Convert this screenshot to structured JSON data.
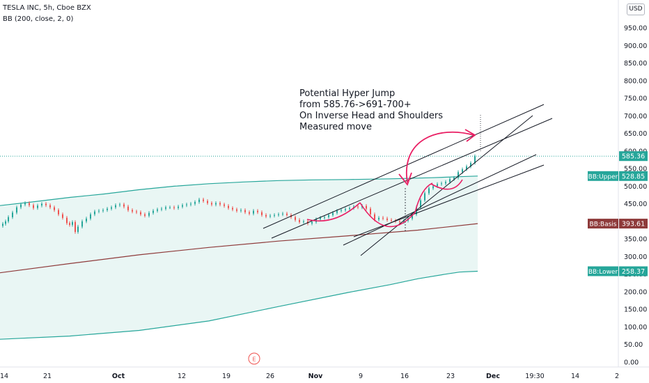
{
  "legend": {
    "symbol": "TESLA INC, 5h, Cboe BZX",
    "indicator": "BB (200, close, 2, 0)"
  },
  "currency": "USD",
  "colors": {
    "band_line": "#26a69a",
    "band_fill": "#e9f6f4",
    "basis": "#8e3a3a",
    "up": "#26a69a",
    "down": "#ef5350",
    "annotation": "#e91e63",
    "trend": "#131722",
    "price_line": "#26a69a"
  },
  "chart_data": {
    "type": "candlestick",
    "y_ticks": [
      "0.00",
      "50.00",
      "100.00",
      "150.00",
      "200.00",
      "250.00",
      "300.00",
      "350.00",
      "400.00",
      "450.00",
      "500.00",
      "550.00",
      "600.00",
      "650.00",
      "700.00",
      "750.00",
      "800.00",
      "850.00",
      "900.00",
      "950.00"
    ],
    "x_ticks": [
      "14",
      "21",
      "Oct",
      "12",
      "19",
      "26",
      "Nov",
      "9",
      "16",
      "23",
      "Dec",
      "19:30",
      "14",
      "2"
    ],
    "ylim": [
      0,
      1000
    ],
    "price_labels": [
      {
        "text": "585.36",
        "value": 585.36,
        "kind": "price"
      },
      {
        "name": "BB:Upper",
        "text": "528.85",
        "value": 528.85,
        "kind": "upper"
      },
      {
        "name": "BB:Basis",
        "text": "393.61",
        "value": 393.61,
        "kind": "basis"
      },
      {
        "name": "BB:Lower",
        "text": "258.37",
        "value": 258.37,
        "kind": "lower"
      }
    ],
    "annotation": [
      "Potential Hyper Jump",
      "from 585.76->691-700+",
      "On Inverse Head and Shoulders",
      "Measured move"
    ],
    "event_marker": "E",
    "bands": {
      "upper": [
        [
          0,
          445
        ],
        [
          45,
          455
        ],
        [
          100,
          468
        ],
        [
          150,
          478
        ],
        [
          200,
          490
        ],
        [
          250,
          500
        ],
        [
          300,
          507
        ],
        [
          350,
          512
        ],
        [
          400,
          516
        ],
        [
          450,
          518
        ],
        [
          500,
          519
        ],
        [
          560,
          521
        ],
        [
          620,
          524
        ],
        [
          660,
          527
        ],
        [
          686,
          528.85
        ]
      ],
      "basis": [
        [
          0,
          254
        ],
        [
          100,
          280
        ],
        [
          200,
          305
        ],
        [
          300,
          326
        ],
        [
          400,
          344
        ],
        [
          500,
          359
        ],
        [
          600,
          375
        ],
        [
          686,
          393.61
        ]
      ],
      "lower": [
        [
          0,
          65
        ],
        [
          100,
          74
        ],
        [
          200,
          90
        ],
        [
          300,
          117
        ],
        [
          400,
          158
        ],
        [
          500,
          198
        ],
        [
          560,
          220
        ],
        [
          600,
          237
        ],
        [
          640,
          250
        ],
        [
          660,
          256
        ],
        [
          686,
          258.37
        ]
      ]
    },
    "candles_close": [
      [
        4,
        393
      ],
      [
        8,
        400
      ],
      [
        12,
        412
      ],
      [
        18,
        425
      ],
      [
        24,
        440
      ],
      [
        30,
        448
      ],
      [
        36,
        452
      ],
      [
        42,
        446
      ],
      [
        48,
        438
      ],
      [
        54,
        445
      ],
      [
        60,
        450
      ],
      [
        66,
        446
      ],
      [
        72,
        440
      ],
      [
        78,
        432
      ],
      [
        84,
        420
      ],
      [
        90,
        410
      ],
      [
        96,
        395
      ],
      [
        100,
        390
      ],
      [
        104,
        398
      ],
      [
        108,
        370
      ],
      [
        112,
        385
      ],
      [
        118,
        400
      ],
      [
        124,
        408
      ],
      [
        130,
        420
      ],
      [
        136,
        428
      ],
      [
        142,
        430
      ],
      [
        148,
        432
      ],
      [
        154,
        436
      ],
      [
        160,
        440
      ],
      [
        166,
        446
      ],
      [
        172,
        448
      ],
      [
        178,
        442
      ],
      [
        184,
        432
      ],
      [
        190,
        428
      ],
      [
        196,
        426
      ],
      [
        202,
        420
      ],
      [
        208,
        416
      ],
      [
        214,
        424
      ],
      [
        220,
        430
      ],
      [
        226,
        434
      ],
      [
        232,
        436
      ],
      [
        238,
        440
      ],
      [
        244,
        440
      ],
      [
        250,
        438
      ],
      [
        256,
        442
      ],
      [
        262,
        446
      ],
      [
        268,
        448
      ],
      [
        274,
        450
      ],
      [
        280,
        455
      ],
      [
        286,
        462
      ],
      [
        292,
        458
      ],
      [
        298,
        452
      ],
      [
        304,
        448
      ],
      [
        310,
        452
      ],
      [
        316,
        448
      ],
      [
        322,
        444
      ],
      [
        328,
        438
      ],
      [
        334,
        434
      ],
      [
        340,
        430
      ],
      [
        346,
        432
      ],
      [
        352,
        426
      ],
      [
        358,
        422
      ],
      [
        364,
        430
      ],
      [
        370,
        426
      ],
      [
        376,
        418
      ],
      [
        382,
        414
      ],
      [
        388,
        416
      ],
      [
        394,
        418
      ],
      [
        400,
        420
      ],
      [
        406,
        422
      ],
      [
        412,
        418
      ],
      [
        418,
        412
      ],
      [
        424,
        404
      ],
      [
        430,
        398
      ],
      [
        436,
        400
      ],
      [
        442,
        394
      ],
      [
        448,
        398
      ],
      [
        454,
        406
      ],
      [
        460,
        410
      ],
      [
        466,
        412
      ],
      [
        472,
        418
      ],
      [
        478,
        424
      ],
      [
        484,
        430
      ],
      [
        490,
        432
      ],
      [
        496,
        435
      ],
      [
        502,
        438
      ],
      [
        508,
        442
      ],
      [
        514,
        440
      ],
      [
        520,
        444
      ],
      [
        526,
        436
      ],
      [
        532,
        420
      ],
      [
        538,
        405
      ],
      [
        544,
        410
      ],
      [
        550,
        408
      ],
      [
        556,
        404
      ],
      [
        562,
        402
      ],
      [
        568,
        400
      ],
      [
        574,
        398
      ],
      [
        580,
        402
      ],
      [
        586,
        408
      ],
      [
        592,
        420
      ],
      [
        598,
        440
      ],
      [
        604,
        460
      ],
      [
        610,
        480
      ],
      [
        616,
        494
      ],
      [
        622,
        500
      ],
      [
        628,
        506
      ],
      [
        634,
        508
      ],
      [
        640,
        512
      ],
      [
        646,
        520
      ],
      [
        652,
        524
      ],
      [
        658,
        540
      ],
      [
        664,
        548
      ],
      [
        670,
        556
      ],
      [
        676,
        566
      ],
      [
        682,
        585.36
      ]
    ]
  }
}
